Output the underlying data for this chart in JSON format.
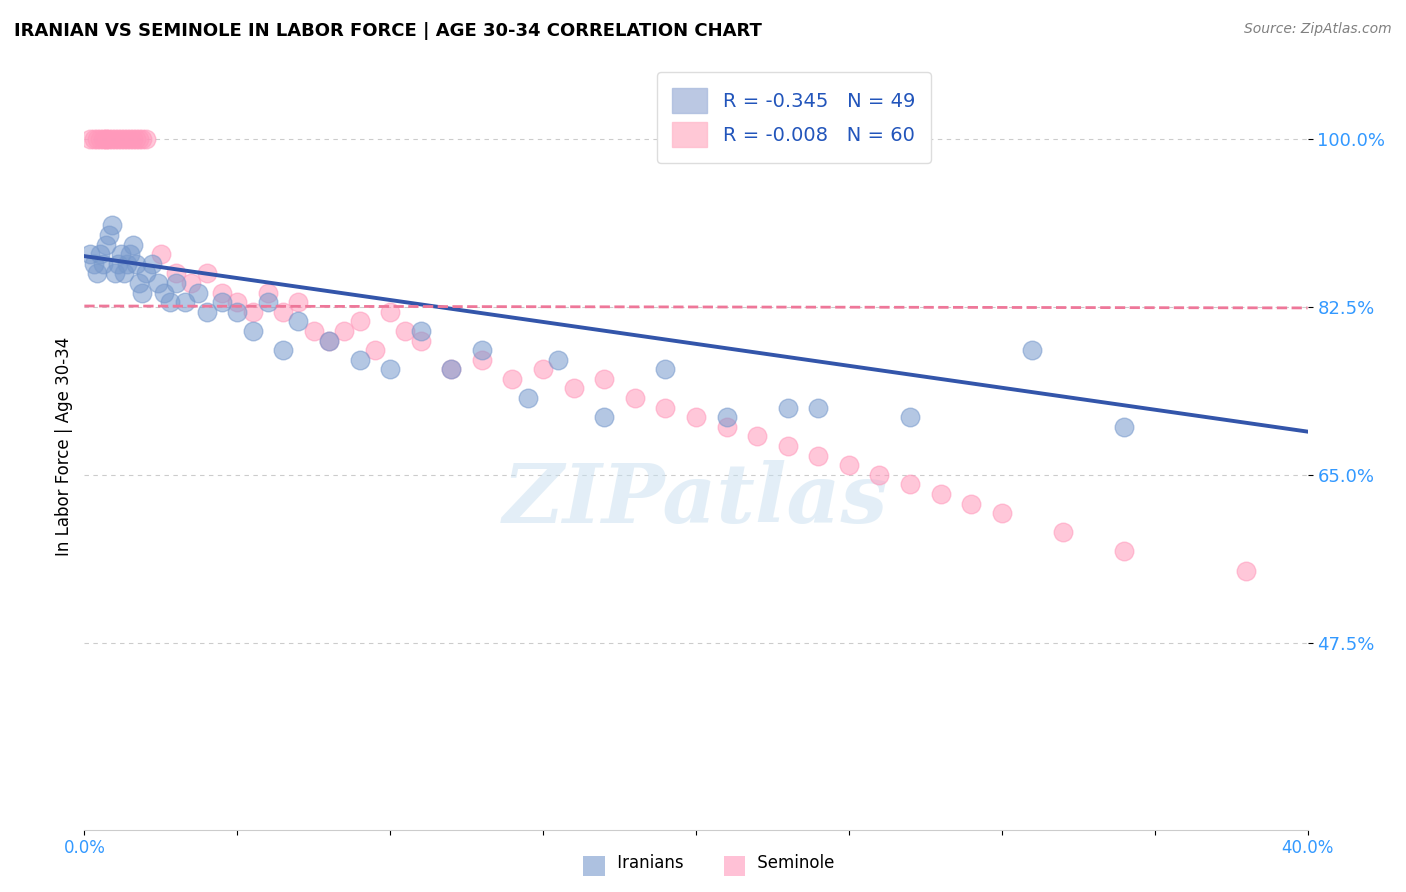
{
  "title": "IRANIAN VS SEMINOLE IN LABOR FORCE | AGE 30-34 CORRELATION CHART",
  "source": "Source: ZipAtlas.com",
  "ylabel": "In Labor Force | Age 30-34",
  "xlim": [
    0.0,
    0.4
  ],
  "ylim": [
    0.28,
    1.08
  ],
  "yticks": [
    0.475,
    0.65,
    0.825,
    1.0
  ],
  "ytick_labels": [
    "47.5%",
    "65.0%",
    "82.5%",
    "100.0%"
  ],
  "xticks": [
    0.0,
    0.05,
    0.1,
    0.15,
    0.2,
    0.25,
    0.3,
    0.35,
    0.4
  ],
  "xtick_labels": [
    "0.0%",
    "",
    "",
    "",
    "",
    "",
    "",
    "",
    "40.0%"
  ],
  "iranians_color": "#7799cc",
  "seminole_color": "#ff99bb",
  "trend_iranian_color": "#3355aa",
  "trend_seminole_color": "#ee7799",
  "R_iranian": -0.345,
  "N_iranian": 49,
  "R_seminole": -0.008,
  "N_seminole": 60,
  "watermark": "ZIPatlas",
  "iranians_x": [
    0.002,
    0.003,
    0.004,
    0.005,
    0.006,
    0.007,
    0.008,
    0.009,
    0.01,
    0.011,
    0.012,
    0.013,
    0.014,
    0.015,
    0.016,
    0.017,
    0.018,
    0.019,
    0.02,
    0.022,
    0.024,
    0.026,
    0.028,
    0.03,
    0.033,
    0.037,
    0.04,
    0.045,
    0.05,
    0.055,
    0.06,
    0.065,
    0.07,
    0.08,
    0.09,
    0.1,
    0.11,
    0.12,
    0.13,
    0.145,
    0.155,
    0.17,
    0.19,
    0.21,
    0.23,
    0.24,
    0.27,
    0.31,
    0.34
  ],
  "iranians_y": [
    0.88,
    0.87,
    0.86,
    0.88,
    0.87,
    0.89,
    0.9,
    0.91,
    0.86,
    0.87,
    0.88,
    0.86,
    0.87,
    0.88,
    0.89,
    0.87,
    0.85,
    0.84,
    0.86,
    0.87,
    0.85,
    0.84,
    0.83,
    0.85,
    0.83,
    0.84,
    0.82,
    0.83,
    0.82,
    0.8,
    0.83,
    0.78,
    0.81,
    0.79,
    0.77,
    0.76,
    0.8,
    0.76,
    0.78,
    0.73,
    0.77,
    0.71,
    0.76,
    0.71,
    0.72,
    0.72,
    0.71,
    0.78,
    0.7
  ],
  "seminole_x": [
    0.002,
    0.003,
    0.004,
    0.005,
    0.006,
    0.007,
    0.007,
    0.008,
    0.009,
    0.01,
    0.011,
    0.012,
    0.013,
    0.014,
    0.015,
    0.016,
    0.017,
    0.018,
    0.019,
    0.02,
    0.025,
    0.03,
    0.035,
    0.04,
    0.045,
    0.05,
    0.055,
    0.06,
    0.065,
    0.07,
    0.075,
    0.08,
    0.085,
    0.09,
    0.095,
    0.1,
    0.105,
    0.11,
    0.12,
    0.13,
    0.14,
    0.15,
    0.16,
    0.17,
    0.18,
    0.19,
    0.2,
    0.21,
    0.22,
    0.23,
    0.24,
    0.25,
    0.26,
    0.27,
    0.28,
    0.29,
    0.3,
    0.32,
    0.34,
    0.38
  ],
  "seminole_y": [
    1.0,
    1.0,
    1.0,
    1.0,
    1.0,
    1.0,
    1.0,
    1.0,
    1.0,
    1.0,
    1.0,
    1.0,
    1.0,
    1.0,
    1.0,
    1.0,
    1.0,
    1.0,
    1.0,
    1.0,
    0.88,
    0.86,
    0.85,
    0.86,
    0.84,
    0.83,
    0.82,
    0.84,
    0.82,
    0.83,
    0.8,
    0.79,
    0.8,
    0.81,
    0.78,
    0.82,
    0.8,
    0.79,
    0.76,
    0.77,
    0.75,
    0.76,
    0.74,
    0.75,
    0.73,
    0.72,
    0.71,
    0.7,
    0.69,
    0.68,
    0.67,
    0.66,
    0.65,
    0.64,
    0.63,
    0.62,
    0.61,
    0.59,
    0.57,
    0.55
  ]
}
